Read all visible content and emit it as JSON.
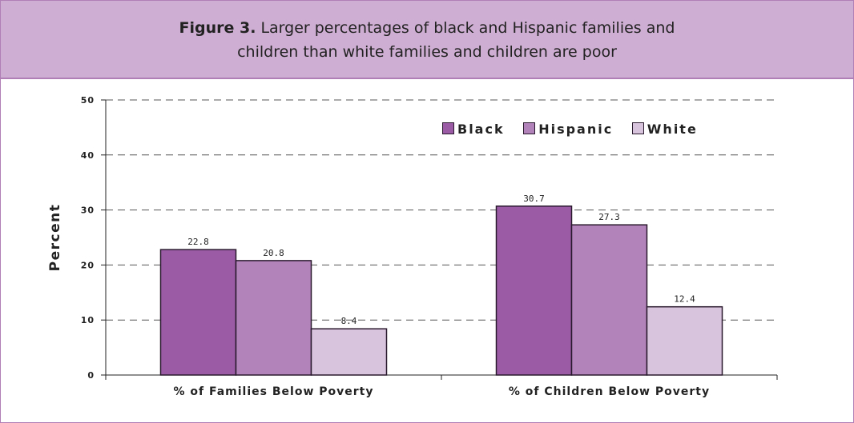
{
  "figure": {
    "label": "Figure 3.",
    "title_line1": "Larger percentages of black and Hispanic families and",
    "title_line2": "children than white families and children are poor"
  },
  "chart_data": {
    "type": "bar",
    "categories": [
      "% of Families Below Poverty",
      "% of Children Below Poverty"
    ],
    "series": [
      {
        "name": "Black",
        "values": [
          22.8,
          30.7
        ],
        "color": "#9b5ca5"
      },
      {
        "name": "Hispanic",
        "values": [
          20.8,
          27.3
        ],
        "color": "#b283bb"
      },
      {
        "name": "White",
        "values": [
          8.4,
          12.4
        ],
        "color": "#d9c4de"
      }
    ],
    "ylabel": "Percent",
    "ylim": [
      0,
      50
    ],
    "yticks": [
      "0",
      "10",
      "20",
      "30",
      "40",
      "50"
    ],
    "data_labels": [
      [
        "22.8",
        "30.7"
      ],
      [
        "20.8",
        "27.3"
      ],
      [
        "8.4",
        "12.4"
      ]
    ],
    "grid": true,
    "legend_position": "top-right"
  }
}
